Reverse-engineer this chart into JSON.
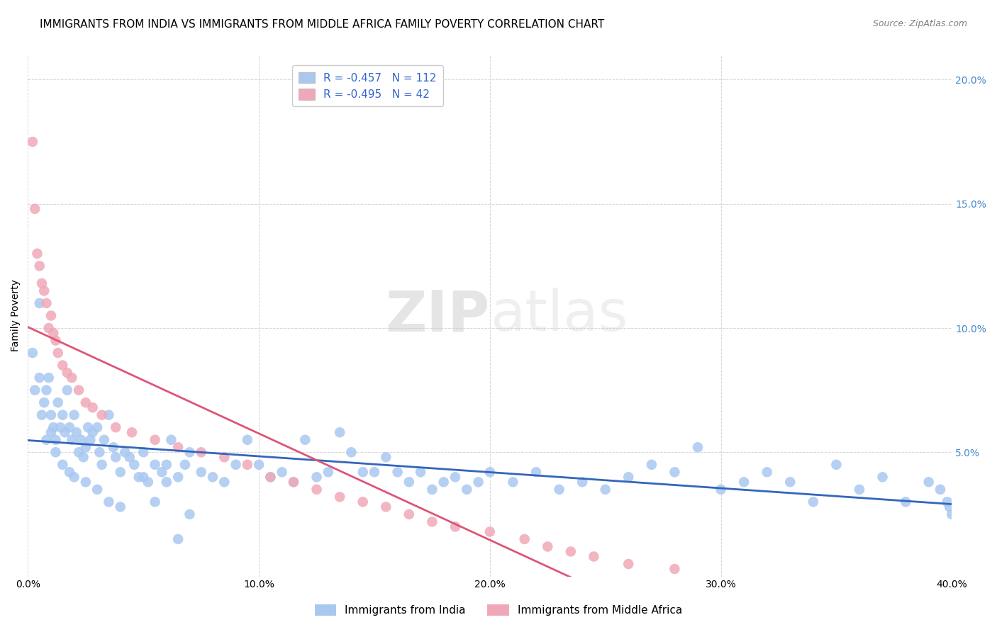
{
  "title": "IMMIGRANTS FROM INDIA VS IMMIGRANTS FROM MIDDLE AFRICA FAMILY POVERTY CORRELATION CHART",
  "source": "Source: ZipAtlas.com",
  "ylabel": "Family Poverty",
  "xlim": [
    0.0,
    0.4
  ],
  "ylim": [
    0.0,
    0.21
  ],
  "x_ticks": [
    0.0,
    0.1,
    0.2,
    0.3,
    0.4
  ],
  "x_tick_labels": [
    "0.0%",
    "10.0%",
    "20.0%",
    "30.0%",
    "40.0%"
  ],
  "y_ticks": [
    0.0,
    0.05,
    0.1,
    0.15,
    0.2
  ],
  "y_tick_labels": [
    "",
    "5.0%",
    "10.0%",
    "15.0%",
    "20.0%"
  ],
  "india_R": -0.457,
  "india_N": 112,
  "africa_R": -0.495,
  "africa_N": 42,
  "india_color": "#a8c8f0",
  "africa_color": "#f0a8b8",
  "india_line_color": "#3366bb",
  "africa_line_color": "#dd5577",
  "india_x": [
    0.002,
    0.003,
    0.005,
    0.006,
    0.007,
    0.008,
    0.009,
    0.01,
    0.011,
    0.012,
    0.013,
    0.014,
    0.015,
    0.016,
    0.017,
    0.018,
    0.019,
    0.02,
    0.021,
    0.022,
    0.023,
    0.024,
    0.025,
    0.026,
    0.027,
    0.028,
    0.03,
    0.031,
    0.032,
    0.033,
    0.035,
    0.037,
    0.038,
    0.04,
    0.042,
    0.044,
    0.046,
    0.048,
    0.05,
    0.052,
    0.055,
    0.058,
    0.06,
    0.062,
    0.065,
    0.068,
    0.07,
    0.075,
    0.08,
    0.085,
    0.09,
    0.095,
    0.1,
    0.105,
    0.11,
    0.115,
    0.12,
    0.125,
    0.13,
    0.135,
    0.14,
    0.145,
    0.15,
    0.155,
    0.16,
    0.165,
    0.17,
    0.175,
    0.18,
    0.185,
    0.19,
    0.195,
    0.2,
    0.21,
    0.22,
    0.23,
    0.24,
    0.25,
    0.26,
    0.27,
    0.28,
    0.29,
    0.3,
    0.31,
    0.32,
    0.33,
    0.34,
    0.35,
    0.36,
    0.37,
    0.38,
    0.39,
    0.395,
    0.398,
    0.399,
    0.4,
    0.005,
    0.008,
    0.01,
    0.012,
    0.015,
    0.018,
    0.02,
    0.025,
    0.03,
    0.035,
    0.04,
    0.05,
    0.055,
    0.06,
    0.065,
    0.07
  ],
  "india_y": [
    0.09,
    0.075,
    0.11,
    0.065,
    0.07,
    0.075,
    0.08,
    0.065,
    0.06,
    0.055,
    0.07,
    0.06,
    0.065,
    0.058,
    0.075,
    0.06,
    0.055,
    0.065,
    0.058,
    0.05,
    0.055,
    0.048,
    0.052,
    0.06,
    0.055,
    0.058,
    0.06,
    0.05,
    0.045,
    0.055,
    0.065,
    0.052,
    0.048,
    0.042,
    0.05,
    0.048,
    0.045,
    0.04,
    0.05,
    0.038,
    0.045,
    0.042,
    0.038,
    0.055,
    0.04,
    0.045,
    0.05,
    0.042,
    0.04,
    0.038,
    0.045,
    0.055,
    0.045,
    0.04,
    0.042,
    0.038,
    0.055,
    0.04,
    0.042,
    0.058,
    0.05,
    0.042,
    0.042,
    0.048,
    0.042,
    0.038,
    0.042,
    0.035,
    0.038,
    0.04,
    0.035,
    0.038,
    0.042,
    0.038,
    0.042,
    0.035,
    0.038,
    0.035,
    0.04,
    0.045,
    0.042,
    0.052,
    0.035,
    0.038,
    0.042,
    0.038,
    0.03,
    0.045,
    0.035,
    0.04,
    0.03,
    0.038,
    0.035,
    0.03,
    0.028,
    0.025,
    0.08,
    0.055,
    0.058,
    0.05,
    0.045,
    0.042,
    0.04,
    0.038,
    0.035,
    0.03,
    0.028,
    0.04,
    0.03,
    0.045,
    0.015,
    0.025
  ],
  "africa_x": [
    0.002,
    0.003,
    0.004,
    0.005,
    0.006,
    0.007,
    0.008,
    0.009,
    0.01,
    0.011,
    0.012,
    0.013,
    0.015,
    0.017,
    0.019,
    0.022,
    0.025,
    0.028,
    0.032,
    0.038,
    0.045,
    0.055,
    0.065,
    0.075,
    0.085,
    0.095,
    0.105,
    0.115,
    0.125,
    0.135,
    0.145,
    0.155,
    0.165,
    0.175,
    0.185,
    0.2,
    0.215,
    0.225,
    0.235,
    0.245,
    0.26,
    0.28
  ],
  "africa_y": [
    0.175,
    0.148,
    0.13,
    0.125,
    0.118,
    0.115,
    0.11,
    0.1,
    0.105,
    0.098,
    0.095,
    0.09,
    0.085,
    0.082,
    0.08,
    0.075,
    0.07,
    0.068,
    0.065,
    0.06,
    0.058,
    0.055,
    0.052,
    0.05,
    0.048,
    0.045,
    0.04,
    0.038,
    0.035,
    0.032,
    0.03,
    0.028,
    0.025,
    0.022,
    0.02,
    0.018,
    0.015,
    0.012,
    0.01,
    0.008,
    0.005,
    0.003
  ],
  "background_color": "#ffffff",
  "grid_color": "#cccccc",
  "title_fontsize": 11,
  "axis_label_fontsize": 10,
  "tick_fontsize": 10,
  "legend_fontsize": 11,
  "right_y_tick_color": "#4488cc",
  "legend_text_color": "#3366cc"
}
